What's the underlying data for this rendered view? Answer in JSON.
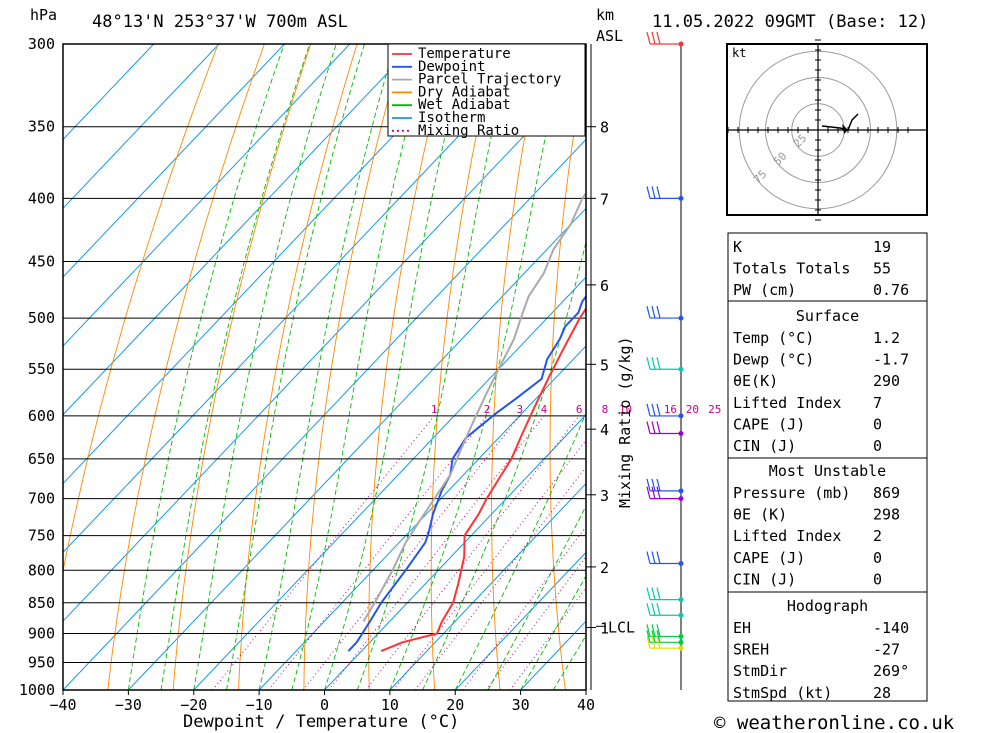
{
  "header": {
    "hpa_label": "hPa",
    "location": "48°13'N  253°37'W  700m  ASL",
    "km_label": "km",
    "asl_label": "ASL",
    "datetime": "11.05.2022  09GMT  (Base: 12)"
  },
  "footer": {
    "credit": "© weatheronline.co.uk"
  },
  "legend": [
    {
      "name": "Temperature",
      "color": "#ff3333",
      "style": "solid"
    },
    {
      "name": "Dewpoint",
      "color": "#2255ee",
      "style": "solid"
    },
    {
      "name": "Parcel Trajectory",
      "color": "#aaaaaa",
      "style": "solid"
    },
    {
      "name": "Dry Adiabat",
      "color": "#ff8800",
      "style": "solid"
    },
    {
      "name": "Wet Adiabat",
      "color": "#00bb00",
      "style": "solid"
    },
    {
      "name": "Isotherm",
      "color": "#1199ee",
      "style": "solid"
    },
    {
      "name": "Mixing Ratio",
      "color": "#cc0088",
      "style": "dotted"
    }
  ],
  "chart_data": {
    "type": "line",
    "xlabel": "Dewpoint / Temperature (°C)",
    "ylabel_left": "hPa",
    "ylabel_right": "Mixing Ratio (g/kg)",
    "xlim": [
      -40,
      40
    ],
    "ylim": [
      1000,
      300
    ],
    "x_ticks": [
      -40,
      -30,
      -20,
      -10,
      0,
      10,
      20,
      30,
      40
    ],
    "pressure_levels": [
      300,
      350,
      400,
      450,
      500,
      550,
      600,
      650,
      700,
      750,
      800,
      850,
      900,
      950,
      1000
    ],
    "km_ticks": [
      {
        "label": "8",
        "p": 350
      },
      {
        "label": "7",
        "p": 400
      },
      {
        "label": "6",
        "p": 470
      },
      {
        "label": "5",
        "p": 545
      },
      {
        "label": "4",
        "p": 615
      },
      {
        "label": "3",
        "p": 695
      },
      {
        "label": "2",
        "p": 795
      },
      {
        "label": "1",
        "p": 890
      }
    ],
    "lcl": {
      "label": "LCL",
      "p": 888
    },
    "mixing_ratio_labels": [
      "1",
      "2",
      "3",
      "4",
      "6",
      "8",
      "10",
      "16",
      "20",
      "25"
    ],
    "series": [
      {
        "name": "Temperature",
        "points": [
          [
            3,
            930
          ],
          [
            5,
            915
          ],
          [
            9,
            900
          ],
          [
            8,
            880
          ],
          [
            7,
            850
          ],
          [
            5,
            820
          ],
          [
            2,
            780
          ],
          [
            -1,
            750
          ],
          [
            -2,
            720
          ],
          [
            -3,
            700
          ],
          [
            -4,
            675
          ],
          [
            -5,
            650
          ],
          [
            -7,
            620
          ],
          [
            -9,
            590
          ],
          [
            -11,
            560
          ],
          [
            -13,
            530
          ],
          [
            -15,
            500
          ],
          [
            -16,
            480
          ],
          [
            -17,
            460
          ],
          [
            -19,
            440
          ],
          [
            -21,
            420
          ],
          [
            -23,
            400
          ],
          [
            -24,
            380
          ],
          [
            -24,
            370
          ],
          [
            -22,
            358
          ],
          [
            -19,
            345
          ],
          [
            -16,
            332
          ],
          [
            -13,
            320
          ],
          [
            -12,
            300
          ]
        ]
      },
      {
        "name": "Dewpoint",
        "points": [
          [
            -2,
            930
          ],
          [
            -2,
            915
          ],
          [
            -3,
            880
          ],
          [
            -4,
            850
          ],
          [
            -5,
            800
          ],
          [
            -6,
            760
          ],
          [
            -7,
            745
          ],
          [
            -9,
            720
          ],
          [
            -10,
            705
          ],
          [
            -11,
            690
          ],
          [
            -12,
            670
          ],
          [
            -14,
            650
          ],
          [
            -15,
            625
          ],
          [
            -14,
            598
          ],
          [
            -13,
            580
          ],
          [
            -12,
            560
          ],
          [
            -14,
            540
          ],
          [
            -15,
            520
          ],
          [
            -16,
            508
          ],
          [
            -16,
            495
          ],
          [
            -17,
            485
          ],
          [
            -18,
            460
          ],
          [
            -19,
            430
          ],
          [
            -20,
            410
          ],
          [
            -21,
            395
          ],
          [
            -23,
            380
          ],
          [
            -25,
            370
          ],
          [
            -26,
            355
          ],
          [
            -25,
            345
          ],
          [
            -24,
            320
          ],
          [
            -24,
            310
          ],
          [
            -25,
            300
          ]
        ]
      },
      {
        "name": "Parcel Trajectory",
        "points": [
          [
            -4,
            880
          ],
          [
            -5,
            850
          ],
          [
            -7,
            800
          ],
          [
            -9,
            760
          ],
          [
            -10,
            730
          ],
          [
            -11,
            700
          ],
          [
            -12,
            670
          ],
          [
            -14,
            640
          ],
          [
            -16,
            610
          ],
          [
            -18,
            580
          ],
          [
            -20,
            550
          ],
          [
            -22,
            520
          ],
          [
            -24,
            500
          ],
          [
            -26,
            480
          ],
          [
            -27,
            460
          ],
          [
            -29,
            440
          ],
          [
            -30,
            420
          ],
          [
            -32,
            400
          ],
          [
            -33,
            380
          ],
          [
            -34,
            360
          ],
          [
            -35,
            340
          ],
          [
            -36,
            320
          ],
          [
            -37,
            300
          ]
        ]
      }
    ]
  },
  "hodograph": {
    "unit_label": "kt",
    "ring_labels": [
      "25",
      "50",
      "75"
    ]
  },
  "table": {
    "top": [
      {
        "label": "K",
        "value": "19"
      },
      {
        "label": "Totals Totals",
        "value": "55"
      },
      {
        "label": "PW (cm)",
        "value": "0.76"
      }
    ],
    "surface_title": "Surface",
    "surface": [
      {
        "label": "Temp (°C)",
        "value": "1.2"
      },
      {
        "label": "Dewp (°C)",
        "value": "-1.7"
      },
      {
        "label": "θE(K)",
        "value": "290"
      },
      {
        "label": "Lifted Index",
        "value": "7"
      },
      {
        "label": "CAPE (J)",
        "value": "0"
      },
      {
        "label": "CIN (J)",
        "value": "0"
      }
    ],
    "mu_title": "Most Unstable",
    "mu": [
      {
        "label": "Pressure (mb)",
        "value": "869"
      },
      {
        "label": "θE (K)",
        "value": "298"
      },
      {
        "label": "Lifted Index",
        "value": "2"
      },
      {
        "label": "CAPE (J)",
        "value": "0"
      },
      {
        "label": "CIN (J)",
        "value": "0"
      }
    ],
    "hodo_title": "Hodograph",
    "hodo": [
      {
        "label": "EH",
        "value": "-140"
      },
      {
        "label": "SREH",
        "value": "-27"
      },
      {
        "label": "StmDir",
        "value": "269°"
      },
      {
        "label": "StmSpd (kt)",
        "value": "28"
      }
    ]
  }
}
